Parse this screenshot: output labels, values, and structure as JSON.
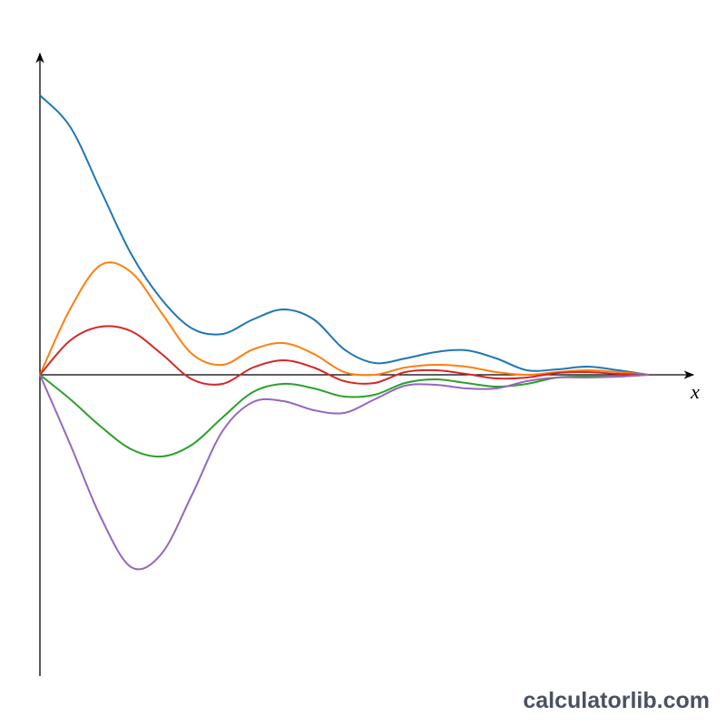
{
  "chart_data": {
    "type": "line",
    "x_label": "x",
    "watermark": "calculatorlib.com",
    "x": [
      0,
      0.5,
      1,
      1.5,
      2,
      2.5,
      3,
      3.5,
      4,
      4.5,
      5,
      5.5,
      6,
      6.5,
      7,
      7.5,
      8,
      8.5,
      9,
      9.5,
      10
    ],
    "xlim": [
      0,
      10.75
    ],
    "ylim": [
      -3.32,
      3.55
    ],
    "series": [
      {
        "color": "#1f77b4",
        "values": [
          3.08,
          2.73,
          2.03,
          1.33,
          0.83,
          0.51,
          0.45,
          0.61,
          0.72,
          0.61,
          0.28,
          0.13,
          0.18,
          0.25,
          0.27,
          0.18,
          0.05,
          0.06,
          0.09,
          0.05,
          0
        ]
      },
      {
        "color": "#ff7f0e",
        "values": [
          0,
          0.73,
          1.21,
          1.13,
          0.68,
          0.23,
          0.11,
          0.28,
          0.35,
          0.23,
          0.03,
          0,
          0.08,
          0.11,
          0.09,
          0.03,
          0,
          0.03,
          0.05,
          0.03,
          0
        ]
      },
      {
        "color": "#d62728",
        "values": [
          0,
          0.38,
          0.53,
          0.48,
          0.23,
          -0.05,
          -0.1,
          0.08,
          0.16,
          0.08,
          -0.07,
          -0.09,
          0.03,
          0.05,
          0.01,
          -0.04,
          -0.03,
          0.02,
          0.03,
          0.01,
          0
        ]
      },
      {
        "color": "#2ca02c",
        "values": [
          0,
          -0.27,
          -0.57,
          -0.82,
          -0.9,
          -0.77,
          -0.47,
          -0.19,
          -0.1,
          -0.15,
          -0.24,
          -0.22,
          -0.09,
          -0.05,
          -0.09,
          -0.13,
          -0.1,
          -0.03,
          -0.02,
          -0.02,
          0
        ]
      },
      {
        "color": "#9467bd",
        "values": [
          0,
          -0.77,
          -1.57,
          -2.12,
          -1.97,
          -1.32,
          -0.62,
          -0.3,
          -0.29,
          -0.39,
          -0.42,
          -0.27,
          -0.12,
          -0.11,
          -0.15,
          -0.15,
          -0.07,
          -0.03,
          -0.03,
          -0.02,
          0
        ]
      }
    ]
  }
}
